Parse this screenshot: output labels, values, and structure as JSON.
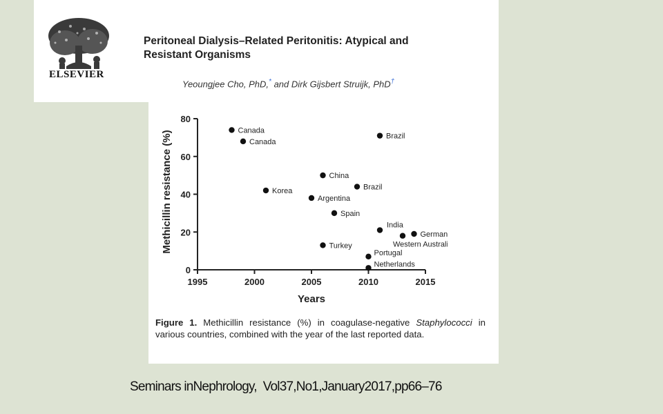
{
  "publisher": "ELSEVIER",
  "paper": {
    "title_line1": "Peritoneal Dialysis–Related Peritonitis: Atypical and",
    "title_line2": "Resistant Organisms",
    "author1": "Yeoungjee Cho, PhD,",
    "author1_mark": "*",
    "author_sep": " and ",
    "author2": "Dirk Gijsbert Struijk, PhD",
    "author2_mark": "†"
  },
  "caption": {
    "label": "Figure 1.",
    "text1": " Methicillin resistance (%) in coagulase-negative ",
    "italic": "Staphylococci",
    "text2": " in various countries, combined with the year of the last reported data."
  },
  "citation": "Seminars inNephrology,  Vol37,No1,January2017,pp66–76",
  "chart_data": {
    "type": "scatter",
    "xlabel": "Years",
    "ylabel": "Methicillin resistance (%)",
    "xlim": [
      1995,
      2015
    ],
    "ylim": [
      0,
      80
    ],
    "xticks": [
      "1995",
      "2000",
      "2005",
      "2010",
      "2015"
    ],
    "yticks": [
      "0",
      "20",
      "40",
      "60",
      "80"
    ],
    "grid": false,
    "points": [
      {
        "x": 1998,
        "y": 74,
        "label": "Canada"
      },
      {
        "x": 1999,
        "y": 68,
        "label": "Canada"
      },
      {
        "x": 2011,
        "y": 71,
        "label": "Brazil"
      },
      {
        "x": 2006,
        "y": 50,
        "label": "China"
      },
      {
        "x": 2009,
        "y": 44,
        "label": "Brazil"
      },
      {
        "x": 2001,
        "y": 42,
        "label": "Korea"
      },
      {
        "x": 2005,
        "y": 38,
        "label": "Argentina"
      },
      {
        "x": 2007,
        "y": 30,
        "label": "Spain"
      },
      {
        "x": 2011,
        "y": 21,
        "label": "India"
      },
      {
        "x": 2014,
        "y": 19,
        "label": "Germany"
      },
      {
        "x": 2013,
        "y": 18,
        "label": "Western Australia"
      },
      {
        "x": 2006,
        "y": 13,
        "label": "Turkey"
      },
      {
        "x": 2010,
        "y": 7,
        "label": "Portugal"
      },
      {
        "x": 2010,
        "y": 1,
        "label": "Netherlands"
      }
    ]
  }
}
